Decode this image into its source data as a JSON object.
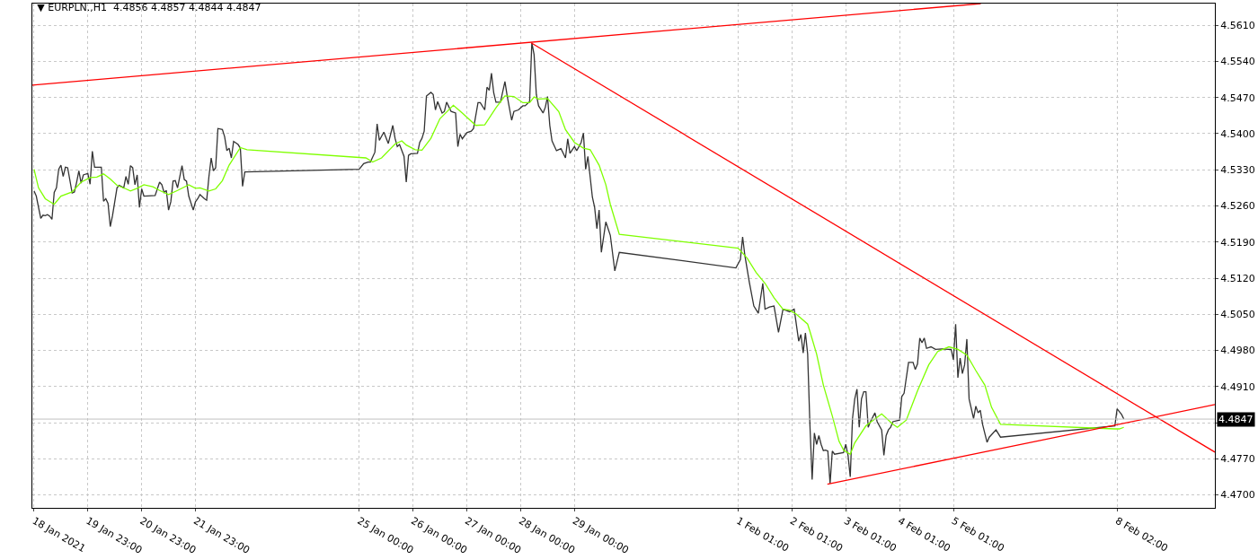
{
  "chart_data": {
    "type": "line",
    "title": "▼ EURPLN.,H1  4.4856 4.4857 4.4844 4.4847",
    "xlim": [
      "2021-01-18T22:15",
      "2021-02-09T21:36"
    ],
    "xticks": [
      {
        "value": "2021-01-18T23:00",
        "label": "18 Jan 2021"
      },
      {
        "value": "2021-01-19T23:00",
        "label": "19 Jan 23:00"
      },
      {
        "value": "2021-01-20T23:00",
        "label": "20 Jan 23:00"
      },
      {
        "value": "2021-01-21T23:00",
        "label": "21 Jan 23:00"
      },
      {
        "value": "2021-01-25T00:00",
        "label": "25 Jan 00:00"
      },
      {
        "value": "2021-01-26T00:00",
        "label": "26 Jan 00:00"
      },
      {
        "value": "2021-01-27T00:00",
        "label": "27 Jan 00:00"
      },
      {
        "value": "2021-01-28T00:00",
        "label": "28 Jan 00:00"
      },
      {
        "value": "2021-01-29T00:00",
        "label": "29 Jan 00:00"
      },
      {
        "value": "2021-02-01T01:00",
        "label": "1 Feb 01:00"
      },
      {
        "value": "2021-02-02T01:00",
        "label": "2 Feb 01:00"
      },
      {
        "value": "2021-02-03T01:00",
        "label": "3 Feb 01:00"
      },
      {
        "value": "2021-02-04T01:00",
        "label": "4 Feb 01:00"
      },
      {
        "value": "2021-02-05T01:00",
        "label": "5 Feb 01:00"
      },
      {
        "value": "2021-02-08T02:00",
        "label": "8 Feb 02:00"
      }
    ],
    "ylim": [
      4.4675,
      4.5652
    ],
    "yticks": [
      {
        "value": 4.47,
        "label": "4.4700"
      },
      {
        "value": 4.477,
        "label": "4.4770"
      },
      {
        "value": 4.484,
        "label": null
      },
      {
        "value": 4.491,
        "label": "4.4910"
      },
      {
        "value": 4.498,
        "label": "4.4980"
      },
      {
        "value": 4.505,
        "label": "4.5050"
      },
      {
        "value": 4.512,
        "label": "4.5120"
      },
      {
        "value": 4.519,
        "label": "4.5190"
      },
      {
        "value": 4.526,
        "label": "4.5260"
      },
      {
        "value": 4.533,
        "label": "4.5330"
      },
      {
        "value": 4.54,
        "label": "4.5400"
      },
      {
        "value": 4.547,
        "label": "4.5470"
      },
      {
        "value": 4.554,
        "label": "4.5540"
      },
      {
        "value": 4.561,
        "label": "4.5610"
      }
    ],
    "grid": true,
    "marker": "none",
    "line_style": "solid",
    "ref_lines": [
      {
        "axis": "y",
        "value": 4.4847,
        "label": "4.4847",
        "color": "#c0c0c0"
      }
    ],
    "series": [
      {
        "color": "#333333",
        "x": [
          "2021-01-18T23:00",
          "2021-01-19T00:00",
          "2021-01-19T02:00",
          "2021-01-19T03:00",
          "2021-01-19T04:00",
          "2021-01-19T05:00",
          "2021-01-19T06:00",
          "2021-01-19T07:00",
          "2021-01-19T08:00",
          "2021-01-19T09:00",
          "2021-01-19T10:00",
          "2021-01-19T11:00",
          "2021-01-19T12:00",
          "2021-01-19T13:00",
          "2021-01-19T14:00",
          "2021-01-19T16:00",
          "2021-01-19T17:00",
          "2021-01-19T18:00",
          "2021-01-19T19:00",
          "2021-01-19T20:00",
          "2021-01-19T21:00",
          "2021-01-19T23:00",
          "2021-01-20T00:00",
          "2021-01-20T01:00",
          "2021-01-20T02:00",
          "2021-01-20T05:00",
          "2021-01-20T06:00",
          "2021-01-20T07:00",
          "2021-01-20T08:00",
          "2021-01-20T09:00",
          "2021-01-20T10:00",
          "2021-01-20T12:00",
          "2021-01-20T13:00",
          "2021-01-20T15:00",
          "2021-01-20T16:00",
          "2021-01-20T17:00",
          "2021-01-20T18:00",
          "2021-01-20T19:00",
          "2021-01-20T20:00",
          "2021-01-20T21:00",
          "2021-01-20T22:00",
          "2021-01-20T23:00",
          "2021-01-21T00:00",
          "2021-01-21T05:00",
          "2021-01-21T06:00",
          "2021-01-21T07:00",
          "2021-01-21T08:00",
          "2021-01-21T09:00",
          "2021-01-21T10:00",
          "2021-01-21T11:00",
          "2021-01-21T12:00",
          "2021-01-21T13:00",
          "2021-01-21T14:00",
          "2021-01-21T15:00",
          "2021-01-21T17:00",
          "2021-01-21T18:00",
          "2021-01-21T19:00",
          "2021-01-21T20:00",
          "2021-01-21T22:00",
          "2021-01-21T23:00",
          "2021-01-22T00:00",
          "2021-01-22T01:00",
          "2021-01-22T03:00",
          "2021-01-22T04:00",
          "2021-01-22T05:00",
          "2021-01-22T06:00",
          "2021-01-22T07:00",
          "2021-01-22T08:00",
          "2021-01-22T09:00",
          "2021-01-22T11:00",
          "2021-01-22T12:00",
          "2021-01-22T13:00",
          "2021-01-22T14:00",
          "2021-01-22T15:00",
          "2021-01-22T16:00",
          "2021-01-22T18:00",
          "2021-01-22T19:00",
          "2021-01-22T20:00",
          "2021-01-22T21:00",
          "2021-01-25T00:00",
          "2021-01-25T02:00",
          "2021-01-25T04:00",
          "2021-01-25T05:00",
          "2021-01-25T07:00",
          "2021-01-25T08:00",
          "2021-01-25T09:00",
          "2021-01-25T11:00",
          "2021-01-25T13:00",
          "2021-01-25T15:00",
          "2021-01-25T16:00",
          "2021-01-25T17:00",
          "2021-01-25T18:00",
          "2021-01-25T20:00",
          "2021-01-25T21:00",
          "2021-01-25T22:00",
          "2021-01-25T23:00",
          "2021-01-26T02:00",
          "2021-01-26T03:00",
          "2021-01-26T04:00",
          "2021-01-26T05:00",
          "2021-01-26T06:00",
          "2021-01-26T08:00",
          "2021-01-26T09:00",
          "2021-01-26T10:00",
          "2021-01-26T11:00",
          "2021-01-26T13:00",
          "2021-01-26T14:00",
          "2021-01-26T15:00",
          "2021-01-26T17:00",
          "2021-01-26T19:00",
          "2021-01-26T20:00",
          "2021-01-26T21:00",
          "2021-01-26T22:00",
          "2021-01-27T00:00",
          "2021-01-27T02:00",
          "2021-01-27T03:00",
          "2021-01-27T05:00",
          "2021-01-27T06:00",
          "2021-01-27T08:00",
          "2021-01-27T09:00",
          "2021-01-27T10:00",
          "2021-01-27T11:00",
          "2021-01-27T12:00",
          "2021-01-27T13:00",
          "2021-01-27T15:00",
          "2021-01-27T17:00",
          "2021-01-27T18:00",
          "2021-01-27T20:00",
          "2021-01-27T21:00",
          "2021-01-27T23:00",
          "2021-01-28T01:00",
          "2021-01-28T02:00",
          "2021-01-28T04:00",
          "2021-01-28T05:00",
          "2021-01-28T06:00",
          "2021-01-28T07:00",
          "2021-01-28T08:00",
          "2021-01-28T10:00",
          "2021-01-28T11:00",
          "2021-01-28T12:00",
          "2021-01-28T13:00",
          "2021-01-28T14:00",
          "2021-01-28T16:00",
          "2021-01-28T18:00",
          "2021-01-28T20:00",
          "2021-01-28T21:00",
          "2021-01-28T22:00",
          "2021-01-29T00:00",
          "2021-01-29T01:00",
          "2021-01-29T03:00",
          "2021-01-29T04:00",
          "2021-01-29T05:00",
          "2021-01-29T06:00",
          "2021-01-29T08:00",
          "2021-01-29T09:00",
          "2021-01-29T10:00",
          "2021-01-29T11:00",
          "2021-01-29T12:00",
          "2021-01-29T14:00",
          "2021-01-29T16:00",
          "2021-01-29T18:00",
          "2021-01-29T20:00",
          "2021-02-01T00:00",
          "2021-02-01T02:00",
          "2021-02-01T03:00",
          "2021-02-01T04:00",
          "2021-02-01T06:00",
          "2021-02-01T08:00",
          "2021-02-01T10:00",
          "2021-02-01T12:00",
          "2021-02-01T13:00",
          "2021-02-01T15:00",
          "2021-02-01T17:00",
          "2021-02-01T19:00",
          "2021-02-01T21:00",
          "2021-02-02T00:00",
          "2021-02-02T02:00",
          "2021-02-02T04:00",
          "2021-02-02T05:00",
          "2021-02-02T06:00",
          "2021-02-02T07:00",
          "2021-02-02T08:00",
          "2021-02-02T09:00",
          "2021-02-02T10:00",
          "2021-02-02T11:00",
          "2021-02-02T12:00",
          "2021-02-02T13:00",
          "2021-02-02T14:00",
          "2021-02-02T15:00",
          "2021-02-02T16:00",
          "2021-02-02T17:00",
          "2021-02-02T18:00",
          "2021-02-02T19:00",
          "2021-02-02T20:00",
          "2021-02-03T00:00",
          "2021-02-03T01:00",
          "2021-02-03T02:00",
          "2021-02-03T03:00",
          "2021-02-03T04:00",
          "2021-02-03T05:00",
          "2021-02-03T06:00",
          "2021-02-03T07:00",
          "2021-02-03T08:00",
          "2021-02-03T09:00",
          "2021-02-03T10:00",
          "2021-02-03T11:00",
          "2021-02-03T12:00",
          "2021-02-03T14:00",
          "2021-02-03T15:00",
          "2021-02-03T17:00",
          "2021-02-03T18:00",
          "2021-02-03T19:00",
          "2021-02-03T20:00",
          "2021-02-03T21:00",
          "2021-02-03T22:00",
          "2021-02-04T01:00",
          "2021-02-04T02:00",
          "2021-02-04T03:00",
          "2021-02-04T05:00",
          "2021-02-04T07:00",
          "2021-02-04T08:00",
          "2021-02-04T09:00",
          "2021-02-04T10:00",
          "2021-02-04T11:00",
          "2021-02-04T12:00",
          "2021-02-04T13:00",
          "2021-02-04T15:00",
          "2021-02-04T17:00",
          "2021-02-04T20:00",
          "2021-02-04T23:00",
          "2021-02-05T00:00",
          "2021-02-05T01:00",
          "2021-02-05T02:00",
          "2021-02-05T03:00",
          "2021-02-05T04:00",
          "2021-02-05T05:00",
          "2021-02-05T06:00",
          "2021-02-05T07:00",
          "2021-02-05T08:00",
          "2021-02-05T10:00",
          "2021-02-05T11:00",
          "2021-02-05T12:00",
          "2021-02-05T13:00",
          "2021-02-05T14:00",
          "2021-02-05T16:00",
          "2021-02-05T17:00",
          "2021-02-05T20:00",
          "2021-02-05T22:00",
          "2021-02-08T01:00",
          "2021-02-08T02:00",
          "2021-02-08T04:00",
          "2021-02-08T05:00"
        ],
        "values": [
          4.5289,
          4.5279,
          4.5236,
          4.5242,
          4.5241,
          4.5243,
          4.524,
          4.5234,
          4.5286,
          4.5295,
          4.5331,
          4.5339,
          4.5317,
          4.5335,
          4.5334,
          4.5285,
          4.5287,
          4.5306,
          4.5328,
          4.5304,
          4.532,
          4.5323,
          4.5302,
          4.5366,
          4.5335,
          4.5335,
          4.5269,
          4.5274,
          4.5265,
          4.522,
          4.5241,
          4.5295,
          4.53,
          4.5295,
          4.5317,
          4.5302,
          4.5338,
          4.5334,
          4.5301,
          4.532,
          4.5257,
          4.5293,
          4.5279,
          4.528,
          4.5293,
          4.5306,
          4.5301,
          4.5286,
          4.529,
          4.5252,
          4.5268,
          4.5308,
          4.5309,
          4.5295,
          4.5338,
          4.5311,
          4.5308,
          4.5279,
          4.5252,
          4.5268,
          4.5274,
          4.5282,
          4.5274,
          4.5271,
          4.5317,
          4.5353,
          4.5328,
          4.5334,
          4.541,
          4.5408,
          4.5394,
          4.5367,
          4.5372,
          4.5353,
          4.5385,
          4.5379,
          4.5372,
          4.5298,
          4.5326,
          4.5331,
          4.5342,
          4.5345,
          4.5345,
          4.5364,
          4.5419,
          4.5387,
          4.5403,
          4.5381,
          4.5416,
          4.5391,
          4.5375,
          4.5379,
          4.5356,
          4.5306,
          4.5358,
          4.5361,
          4.5362,
          4.5383,
          4.5391,
          4.5405,
          4.5473,
          4.548,
          4.5476,
          4.5446,
          4.5462,
          4.544,
          4.5443,
          4.5461,
          4.5443,
          4.544,
          4.5375,
          4.5399,
          4.539,
          4.5402,
          4.5405,
          4.541,
          4.546,
          4.546,
          4.5446,
          4.549,
          4.5484,
          4.5517,
          4.5479,
          4.5461,
          4.5461,
          4.5501,
          4.5473,
          4.5426,
          4.5443,
          4.5446,
          4.5454,
          4.5454,
          4.5462,
          4.5576,
          4.5553,
          4.5476,
          4.5454,
          4.544,
          4.5451,
          4.5472,
          4.5416,
          4.5386,
          4.5367,
          4.5371,
          4.5353,
          4.539,
          4.5362,
          4.5375,
          4.5367,
          4.5383,
          4.5401,
          4.5331,
          4.5356,
          4.5277,
          4.5257,
          4.5216,
          4.5252,
          4.517,
          4.5229,
          4.5203,
          4.5134,
          4.517,
          4.514,
          4.5156,
          4.52,
          4.5164,
          4.5112,
          4.5066,
          4.5052,
          4.511,
          4.506,
          4.5064,
          4.5066,
          4.5015,
          4.506,
          4.5055,
          4.506,
          4.4998,
          4.5011,
          4.4975,
          4.5014,
          4.4973,
          4.4837,
          4.473,
          4.482,
          4.4798,
          4.4815,
          4.4798,
          4.4786,
          4.4787,
          4.4785,
          4.4722,
          4.4785,
          4.4779,
          4.4782,
          4.4798,
          4.4777,
          4.4735,
          4.4848,
          4.4886,
          4.4905,
          4.4831,
          4.4886,
          4.49,
          4.49,
          4.4831,
          4.4842,
          4.4859,
          4.4842,
          4.4826,
          4.4777,
          4.4815,
          4.4826,
          4.4831,
          4.4842,
          4.4845,
          4.4891,
          4.4897,
          4.4957,
          4.4957,
          4.4943,
          4.4954,
          4.5004,
          4.4995,
          4.5004,
          4.4984,
          4.4987,
          4.4982,
          4.4983,
          4.4982,
          4.4982,
          4.4962,
          4.5031,
          4.4927,
          4.4965,
          4.4935,
          4.4952,
          4.5002,
          4.4886,
          4.4848,
          4.4872,
          4.4859,
          4.4864,
          4.4837,
          4.4802,
          4.4812,
          4.4826,
          4.4812,
          4.4834,
          4.4867,
          4.4856,
          4.4847
        ]
      },
      {
        "color": "#7fff00",
        "x": [
          "2021-01-18T23:00",
          "2021-01-19T01:00",
          "2021-01-19T04:00",
          "2021-01-19T08:00",
          "2021-01-19T11:00",
          "2021-01-19T16:00",
          "2021-01-19T20:00",
          "2021-01-20T00:00",
          "2021-01-20T03:00",
          "2021-01-20T06:00",
          "2021-01-20T09:00",
          "2021-01-20T12:00",
          "2021-01-20T16:00",
          "2021-01-20T18:00",
          "2021-01-20T21:00",
          "2021-01-21T00:00",
          "2021-01-21T04:00",
          "2021-01-21T07:00",
          "2021-01-21T11:00",
          "2021-01-21T15:00",
          "2021-01-21T20:00",
          "2021-01-21T23:00",
          "2021-01-22T01:00",
          "2021-01-22T05:00",
          "2021-01-22T08:00",
          "2021-01-22T11:00",
          "2021-01-22T14:00",
          "2021-01-22T19:00",
          "2021-01-22T22:00",
          "2021-01-25T03:00",
          "2021-01-25T06:00",
          "2021-01-25T10:00",
          "2021-01-25T16:00",
          "2021-01-25T19:00",
          "2021-01-25T21:00",
          "2021-01-26T01:00",
          "2021-01-26T04:00",
          "2021-01-26T08:00",
          "2021-01-26T12:00",
          "2021-01-26T18:00",
          "2021-01-26T22:00",
          "2021-01-27T04:00",
          "2021-01-27T08:00",
          "2021-01-27T13:00",
          "2021-01-27T17:00",
          "2021-01-27T21:00",
          "2021-01-28T01:00",
          "2021-01-28T04:00",
          "2021-01-28T06:00",
          "2021-01-28T08:00",
          "2021-01-28T12:00",
          "2021-01-28T17:00",
          "2021-01-28T20:00",
          "2021-01-29T00:00",
          "2021-01-29T04:00",
          "2021-01-29T07:00",
          "2021-01-29T11:00",
          "2021-01-29T14:00",
          "2021-01-29T16:00",
          "2021-01-29T20:00",
          "2021-02-01T01:00",
          "2021-02-01T05:00",
          "2021-02-01T09:00",
          "2021-02-01T13:00",
          "2021-02-01T17:00",
          "2021-02-01T21:00",
          "2021-02-02T00:00",
          "2021-02-02T03:00",
          "2021-02-02T08:00",
          "2021-02-02T09:00",
          "2021-02-02T12:00",
          "2021-02-02T15:00",
          "2021-02-02T19:00",
          "2021-02-02T22:00",
          "2021-02-03T00:00",
          "2021-02-03T03:00",
          "2021-02-03T05:00",
          "2021-02-03T10:00",
          "2021-02-03T17:00",
          "2021-02-03T22:00",
          "2021-02-04T00:00",
          "2021-02-04T04:00",
          "2021-02-04T09:00",
          "2021-02-04T14:00",
          "2021-02-04T18:00",
          "2021-02-04T23:00",
          "2021-02-05T03:00",
          "2021-02-05T07:00",
          "2021-02-05T11:00",
          "2021-02-05T15:00",
          "2021-02-05T18:00",
          "2021-02-05T22:00",
          "2021-02-08T01:00",
          "2021-02-08T03:00",
          "2021-02-08T05:00"
        ],
        "values": [
          4.5331,
          4.5295,
          4.5274,
          4.5263,
          4.5279,
          4.5287,
          4.5306,
          4.5315,
          4.5316,
          4.5322,
          4.5312,
          4.53,
          4.5293,
          4.5289,
          4.5294,
          4.5301,
          4.5297,
          4.529,
          4.5282,
          4.529,
          4.5301,
          4.5294,
          4.5295,
          4.5289,
          4.5293,
          4.5309,
          4.5339,
          4.5373,
          4.5369,
          4.5353,
          4.5345,
          4.5353,
          4.538,
          4.5386,
          4.5378,
          4.5369,
          4.5368,
          4.5391,
          4.5429,
          4.5455,
          4.544,
          4.5416,
          4.5417,
          4.545,
          4.5473,
          4.5472,
          4.546,
          4.546,
          4.5471,
          4.5467,
          4.5468,
          4.5443,
          4.5408,
          4.5383,
          4.5372,
          4.5369,
          4.5339,
          4.5301,
          4.5263,
          4.5205,
          4.5178,
          4.5159,
          4.5131,
          4.511,
          4.5082,
          4.506,
          4.5058,
          4.505,
          4.5031,
          4.5017,
          4.4973,
          4.4913,
          4.4853,
          4.4804,
          4.4787,
          4.4779,
          4.4801,
          4.4834,
          4.4857,
          4.4837,
          4.4831,
          4.4845,
          4.4902,
          4.4952,
          4.4978,
          4.4987,
          4.4982,
          4.4971,
          4.4941,
          4.4913,
          4.487,
          4.4837,
          4.4828,
          4.4828,
          4.4831
        ]
      },
      {
        "color": "#ff0000",
        "x": [
          "2021-01-18T22:15",
          "2021-02-05T13:12"
        ],
        "values": [
          4.5494,
          4.5652
        ]
      },
      {
        "color": "#ff0000",
        "x": [
          "2021-01-28T04:42",
          "2021-02-09T21:36"
        ],
        "values": [
          4.5576,
          4.4783
        ]
      },
      {
        "color": "#ff0000",
        "x": [
          "2021-02-02T16:48",
          "2021-02-09T21:36"
        ],
        "values": [
          4.4721,
          4.4875
        ]
      }
    ]
  }
}
